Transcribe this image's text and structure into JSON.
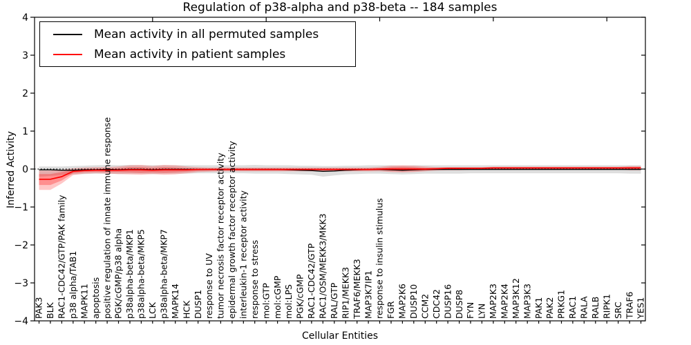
{
  "chart_data": {
    "type": "line",
    "title": "Regulation of p38-alpha and p38-beta -- 184 samples",
    "xlabel": "Cellular Entities",
    "ylabel": "Inferred Activity",
    "ylim": [
      -4,
      4
    ],
    "yticks": [
      "-4",
      "-3",
      "-2",
      "-1",
      "0",
      "1",
      "2",
      "3",
      "4"
    ],
    "grid": false,
    "legend_position": "upper-left",
    "legend": [
      "Mean activity in all permuted samples",
      "Mean activity in patient samples"
    ],
    "zero_line": {
      "value": 0,
      "style": "dotted",
      "color": "#000000"
    },
    "categories": [
      "PAK3",
      "BLK",
      "RAC1-CDC42/GTP/PAK family",
      "p38 alpha/TAB1",
      "MAPK11",
      "apoptosis",
      "positive regulation of innate immune response",
      "PGK/cGMP/p38 alpha",
      "p38alpha-beta/MKP1",
      "p38alpha-beta/MKP5",
      "LCK",
      "p38alpha-beta/MKP7",
      "MAPK14",
      "HCK",
      "DUSP1",
      "response to UV",
      "tumor necrosis factor receptor activity",
      "epidermal growth factor receptor activity",
      "interleukin-1 receptor activity",
      "response to stress",
      "mol:GTP",
      "mol:cGMP",
      "mol:LPS",
      "PGK/cGMP",
      "RAC1-CDC42/GTP",
      "RAC1/OSM/MEKK3/MKK3",
      "RAL/GTP",
      "RIP1/MEKK3",
      "TRAF6/MEKK3",
      "MAP3K7IP1",
      "response to insulin stimulus",
      "FGR",
      "MAP2K6",
      "DUSP10",
      "CCM2",
      "CDC42",
      "DUSP16",
      "DUSP8",
      "FYN",
      "LYN",
      "MAP2K3",
      "MAP2K4",
      "MAP3K12",
      "MAP3K3",
      "PAK1",
      "PAK2",
      "PRKG1",
      "RAC1",
      "RALA",
      "RALB",
      "RIPK1",
      "SRC",
      "TRAF6",
      "YES1"
    ],
    "series": [
      {
        "name": "Mean activity in all permuted samples",
        "color": "#000000",
        "width": 1.4,
        "values": [
          -0.02,
          -0.02,
          -0.03,
          -0.03,
          -0.02,
          -0.02,
          -0.01,
          -0.02,
          -0.01,
          -0.01,
          -0.02,
          -0.01,
          -0.01,
          -0.01,
          -0.01,
          -0.01,
          -0.01,
          -0.01,
          -0.01,
          -0.01,
          -0.01,
          -0.01,
          -0.02,
          -0.03,
          -0.04,
          -0.06,
          -0.05,
          -0.03,
          -0.02,
          -0.01,
          -0.01,
          -0.02,
          -0.03,
          -0.02,
          -0.01,
          -0.01,
          -0.01,
          -0.01,
          -0.01,
          -0.01,
          -0.01,
          -0.01,
          -0.01,
          -0.01,
          -0.01,
          -0.01,
          -0.01,
          -0.01,
          -0.01,
          -0.01,
          -0.01,
          -0.01,
          -0.01,
          -0.01
        ]
      },
      {
        "name": "Mean activity in patient samples",
        "color": "#ff0000",
        "width": 1.7,
        "values": [
          -0.27,
          -0.27,
          -0.2,
          -0.06,
          -0.04,
          -0.03,
          -0.03,
          -0.03,
          -0.02,
          -0.02,
          -0.03,
          -0.02,
          -0.02,
          -0.02,
          -0.01,
          -0.01,
          -0.01,
          -0.01,
          -0.01,
          -0.01,
          -0.01,
          -0.01,
          -0.01,
          -0.01,
          -0.01,
          -0.01,
          -0.01,
          -0.01,
          -0.01,
          -0.01,
          0.0,
          0.0,
          0.0,
          0.0,
          0.0,
          0.01,
          0.02,
          0.02,
          0.02,
          0.02,
          0.03,
          0.03,
          0.03,
          0.03,
          0.03,
          0.03,
          0.03,
          0.03,
          0.03,
          0.03,
          0.03,
          0.03,
          0.03,
          0.03
        ]
      }
    ],
    "bands": [
      {
        "name": "permuted-samples-band",
        "fill": "rgba(0,0,0,0.13)",
        "upper": [
          0.07,
          0.07,
          0.07,
          0.08,
          0.09,
          0.1,
          0.11,
          0.1,
          0.11,
          0.1,
          0.1,
          0.1,
          0.1,
          0.1,
          0.1,
          0.1,
          0.1,
          0.1,
          0.1,
          0.11,
          0.1,
          0.1,
          0.1,
          0.09,
          0.09,
          0.08,
          0.08,
          0.09,
          0.09,
          0.1,
          0.1,
          0.1,
          0.09,
          0.1,
          0.1,
          0.1,
          0.1,
          0.1,
          0.1,
          0.1,
          0.1,
          0.1,
          0.1,
          0.1,
          0.1,
          0.1,
          0.1,
          0.1,
          0.1,
          0.1,
          0.1,
          0.1,
          0.1,
          0.1
        ],
        "lower": [
          -0.2,
          -0.18,
          -0.16,
          -0.14,
          -0.13,
          -0.12,
          -0.12,
          -0.13,
          -0.12,
          -0.12,
          -0.13,
          -0.12,
          -0.12,
          -0.12,
          -0.11,
          -0.11,
          -0.11,
          -0.11,
          -0.11,
          -0.12,
          -0.12,
          -0.12,
          -0.13,
          -0.14,
          -0.15,
          -0.2,
          -0.17,
          -0.14,
          -0.13,
          -0.12,
          -0.12,
          -0.13,
          -0.14,
          -0.13,
          -0.12,
          -0.12,
          -0.12,
          -0.12,
          -0.11,
          -0.11,
          -0.11,
          -0.11,
          -0.11,
          -0.11,
          -0.11,
          -0.11,
          -0.11,
          -0.11,
          -0.11,
          -0.11,
          -0.11,
          -0.11,
          -0.12,
          -0.12
        ]
      },
      {
        "name": "patient-samples-band-outer",
        "fill": "rgba(255,0,0,0.22)",
        "upper": [
          -0.04,
          -0.04,
          -0.02,
          0.02,
          0.04,
          0.05,
          0.05,
          0.07,
          0.1,
          0.11,
          0.08,
          0.11,
          0.1,
          0.07,
          0.05,
          0.04,
          0.04,
          0.04,
          0.04,
          0.04,
          0.04,
          0.04,
          0.04,
          0.04,
          0.04,
          0.04,
          0.04,
          0.04,
          0.04,
          0.04,
          0.06,
          0.09,
          0.1,
          0.09,
          0.07,
          0.05,
          0.05,
          0.05,
          0.05,
          0.05,
          0.06,
          0.06,
          0.06,
          0.06,
          0.06,
          0.06,
          0.06,
          0.06,
          0.06,
          0.06,
          0.06,
          0.06,
          0.08,
          0.08
        ],
        "lower": [
          -0.55,
          -0.55,
          -0.38,
          -0.16,
          -0.12,
          -0.11,
          -0.12,
          -0.13,
          -0.14,
          -0.15,
          -0.13,
          -0.15,
          -0.14,
          -0.11,
          -0.08,
          -0.07,
          -0.06,
          -0.06,
          -0.06,
          -0.06,
          -0.06,
          -0.06,
          -0.06,
          -0.06,
          -0.06,
          -0.06,
          -0.06,
          -0.06,
          -0.06,
          -0.06,
          -0.06,
          -0.08,
          -0.09,
          -0.08,
          -0.06,
          -0.04,
          -0.03,
          -0.03,
          -0.02,
          -0.02,
          -0.01,
          -0.01,
          -0.01,
          -0.01,
          -0.01,
          -0.01,
          -0.01,
          -0.01,
          -0.01,
          -0.01,
          -0.01,
          -0.01,
          -0.03,
          -0.03
        ]
      },
      {
        "name": "patient-samples-band-inner",
        "fill": "rgba(255,0,0,0.28)",
        "upper": [
          -0.13,
          -0.13,
          -0.08,
          -0.02,
          0.0,
          0.01,
          0.01,
          0.02,
          0.05,
          0.05,
          0.03,
          0.05,
          0.04,
          0.02,
          0.01,
          0.01,
          0.01,
          0.01,
          0.01,
          0.01,
          0.01,
          0.01,
          0.01,
          0.01,
          0.01,
          0.01,
          0.01,
          0.01,
          0.01,
          0.01,
          0.02,
          0.05,
          0.06,
          0.05,
          0.03,
          0.02,
          0.03,
          0.03,
          0.03,
          0.03,
          0.04,
          0.04,
          0.04,
          0.04,
          0.04,
          0.04,
          0.04,
          0.04,
          0.04,
          0.04,
          0.04,
          0.04,
          0.05,
          0.05
        ],
        "lower": [
          -0.42,
          -0.42,
          -0.3,
          -0.11,
          -0.08,
          -0.07,
          -0.08,
          -0.08,
          -0.09,
          -0.1,
          -0.09,
          -0.1,
          -0.09,
          -0.07,
          -0.05,
          -0.04,
          -0.04,
          -0.04,
          -0.04,
          -0.04,
          -0.04,
          -0.04,
          -0.04,
          -0.04,
          -0.04,
          -0.04,
          -0.04,
          -0.04,
          -0.04,
          -0.04,
          -0.03,
          -0.05,
          -0.06,
          -0.05,
          -0.04,
          -0.02,
          -0.01,
          -0.01,
          0.0,
          0.0,
          0.01,
          0.01,
          0.01,
          0.01,
          0.01,
          0.01,
          0.01,
          0.01,
          0.01,
          0.01,
          0.01,
          0.01,
          0.01,
          0.01
        ]
      }
    ]
  }
}
